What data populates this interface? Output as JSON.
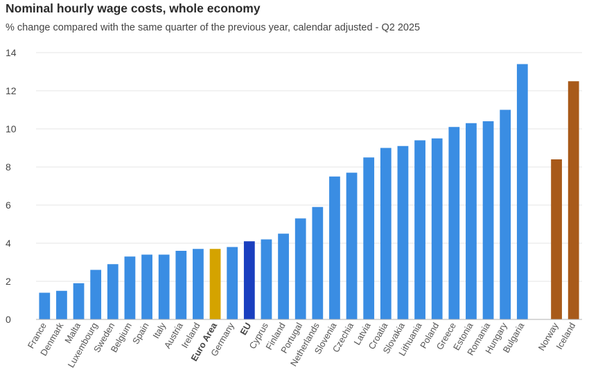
{
  "colors": {
    "member": "#3a8de3",
    "euro_area": "#d4a300",
    "eu": "#1a3fbf",
    "efta": "#a85a1a",
    "grid": "#e6e6e6",
    "axis": "#b0b0b0"
  },
  "chart_data": {
    "type": "bar",
    "title": "Nominal hourly wage costs, whole economy",
    "subtitle": "% change compared with the same quarter of the previous year, calendar adjusted - Q2 2025",
    "xlabel": "",
    "ylabel": "",
    "ylim": [
      0,
      14
    ],
    "yticks": [
      0,
      2,
      4,
      6,
      8,
      10,
      12,
      14
    ],
    "grid": true,
    "legend": "none",
    "bars": [
      {
        "label": "France",
        "value": 1.4,
        "group": "member"
      },
      {
        "label": "Denmark",
        "value": 1.5,
        "group": "member"
      },
      {
        "label": "Malta",
        "value": 1.9,
        "group": "member"
      },
      {
        "label": "Luxembourg",
        "value": 2.6,
        "group": "member"
      },
      {
        "label": "Sweden",
        "value": 2.9,
        "group": "member"
      },
      {
        "label": "Belgium",
        "value": 3.3,
        "group": "member"
      },
      {
        "label": "Spain",
        "value": 3.4,
        "group": "member"
      },
      {
        "label": "Italy",
        "value": 3.4,
        "group": "member"
      },
      {
        "label": "Austria",
        "value": 3.6,
        "group": "member"
      },
      {
        "label": "Ireland",
        "value": 3.7,
        "group": "member"
      },
      {
        "label": "Euro Area",
        "value": 3.7,
        "group": "euro_area",
        "bold": true
      },
      {
        "label": "Germany",
        "value": 3.8,
        "group": "member"
      },
      {
        "label": "EU",
        "value": 4.1,
        "group": "eu",
        "bold": true
      },
      {
        "label": "Cyprus",
        "value": 4.2,
        "group": "member"
      },
      {
        "label": "Finland",
        "value": 4.5,
        "group": "member"
      },
      {
        "label": "Portugal",
        "value": 5.3,
        "group": "member"
      },
      {
        "label": "Netherlands",
        "value": 5.9,
        "group": "member"
      },
      {
        "label": "Slovenia",
        "value": 7.5,
        "group": "member"
      },
      {
        "label": "Czechia",
        "value": 7.7,
        "group": "member"
      },
      {
        "label": "Latvia",
        "value": 8.5,
        "group": "member"
      },
      {
        "label": "Croatia",
        "value": 9.0,
        "group": "member"
      },
      {
        "label": "Slovakia",
        "value": 9.1,
        "group": "member"
      },
      {
        "label": "Lithuania",
        "value": 9.4,
        "group": "member"
      },
      {
        "label": "Poland",
        "value": 9.5,
        "group": "member"
      },
      {
        "label": "Greece",
        "value": 10.1,
        "group": "member"
      },
      {
        "label": "Estonia",
        "value": 10.3,
        "group": "member"
      },
      {
        "label": "Romania",
        "value": 10.4,
        "group": "member"
      },
      {
        "label": "Hungary",
        "value": 11.0,
        "group": "member"
      },
      {
        "label": "Bulgaria",
        "value": 13.4,
        "group": "member"
      },
      {
        "label": "",
        "value": null,
        "group": "gap"
      },
      {
        "label": "Norway",
        "value": 8.4,
        "group": "efta"
      },
      {
        "label": "Iceland",
        "value": 12.5,
        "group": "efta"
      }
    ]
  }
}
